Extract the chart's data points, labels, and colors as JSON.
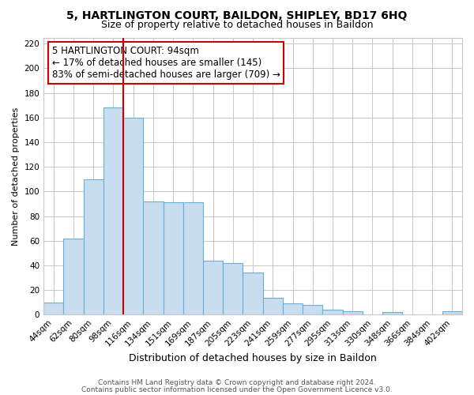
{
  "title": "5, HARTLINGTON COURT, BAILDON, SHIPLEY, BD17 6HQ",
  "subtitle": "Size of property relative to detached houses in Baildon",
  "xlabel": "Distribution of detached houses by size in Baildon",
  "ylabel": "Number of detached properties",
  "bar_labels": [
    "44sqm",
    "62sqm",
    "80sqm",
    "98sqm",
    "116sqm",
    "134sqm",
    "151sqm",
    "169sqm",
    "187sqm",
    "205sqm",
    "223sqm",
    "241sqm",
    "259sqm",
    "277sqm",
    "295sqm",
    "313sqm",
    "330sqm",
    "348sqm",
    "366sqm",
    "384sqm",
    "402sqm"
  ],
  "bar_values": [
    10,
    62,
    110,
    168,
    160,
    92,
    91,
    91,
    44,
    42,
    34,
    14,
    9,
    8,
    4,
    3,
    0,
    2,
    0,
    0,
    3
  ],
  "bar_color": "#c8ddf0",
  "bar_edge_color": "#6aaed6",
  "subject_line_color": "#cc0000",
  "subject_line_index": 3,
  "ylim": [
    0,
    225
  ],
  "yticks": [
    0,
    20,
    40,
    60,
    80,
    100,
    120,
    140,
    160,
    180,
    200,
    220
  ],
  "annotation_text_line1": "5 HARTLINGTON COURT: 94sqm",
  "annotation_text_line2": "← 17% of detached houses are smaller (145)",
  "annotation_text_line3": "83% of semi-detached houses are larger (709) →",
  "footer_line1": "Contains HM Land Registry data © Crown copyright and database right 2024.",
  "footer_line2": "Contains public sector information licensed under the Open Government Licence v3.0.",
  "bg_color": "#ffffff",
  "grid_color": "#c8c8c8",
  "title_fontsize": 10,
  "subtitle_fontsize": 9,
  "xlabel_fontsize": 9,
  "ylabel_fontsize": 8,
  "tick_fontsize": 7.5,
  "annotation_fontsize": 8.5,
  "footer_fontsize": 6.5
}
